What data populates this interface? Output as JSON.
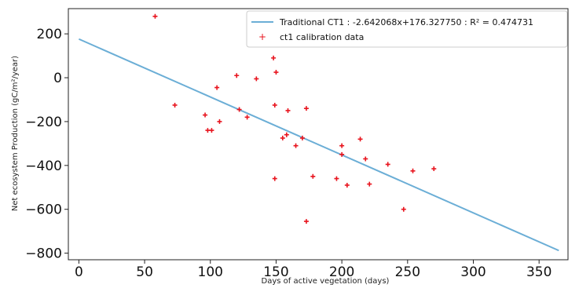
{
  "chart_data": {
    "type": "scatter",
    "xlabel": "Days of active vegetation (days)",
    "ylabel": "Net ecosystem Production (gC/m²/year)",
    "xlim": [
      -8,
      372
    ],
    "ylim": [
      -830,
      315
    ],
    "x_ticks": [
      0,
      50,
      100,
      150,
      200,
      250,
      300,
      350
    ],
    "y_ticks": [
      200,
      0,
      -200,
      -400,
      -600,
      -800
    ],
    "grid": false,
    "legend_position": "top-right",
    "colors": {
      "line": "#6baed6",
      "points": "#e8141e"
    },
    "series": [
      {
        "name": "Traditional CT1 : -2.642068x+176.327750 : R² = 0.474731",
        "kind": "line",
        "x": [
          0,
          365
        ],
        "y": [
          176.33,
          -788.03
        ]
      },
      {
        "name": "ct1 calibration data",
        "kind": "scatter",
        "points": [
          [
            58,
            280
          ],
          [
            73,
            -125
          ],
          [
            96,
            -170
          ],
          [
            98,
            -240
          ],
          [
            101,
            -240
          ],
          [
            105,
            -45
          ],
          [
            107,
            -200
          ],
          [
            120,
            10
          ],
          [
            122,
            -145
          ],
          [
            128,
            -180
          ],
          [
            135,
            -5
          ],
          [
            148,
            90
          ],
          [
            149,
            -125
          ],
          [
            149,
            -460
          ],
          [
            150,
            25
          ],
          [
            155,
            -275
          ],
          [
            158,
            -260
          ],
          [
            159,
            -150
          ],
          [
            165,
            -310
          ],
          [
            170,
            -275
          ],
          [
            173,
            -140
          ],
          [
            173,
            -655
          ],
          [
            178,
            -450
          ],
          [
            196,
            -460
          ],
          [
            200,
            -310
          ],
          [
            200,
            -350
          ],
          [
            204,
            -490
          ],
          [
            214,
            -280
          ],
          [
            218,
            -370
          ],
          [
            221,
            -485
          ],
          [
            235,
            -395
          ],
          [
            247,
            -600
          ],
          [
            254,
            -425
          ],
          [
            270,
            -415
          ]
        ]
      }
    ]
  }
}
